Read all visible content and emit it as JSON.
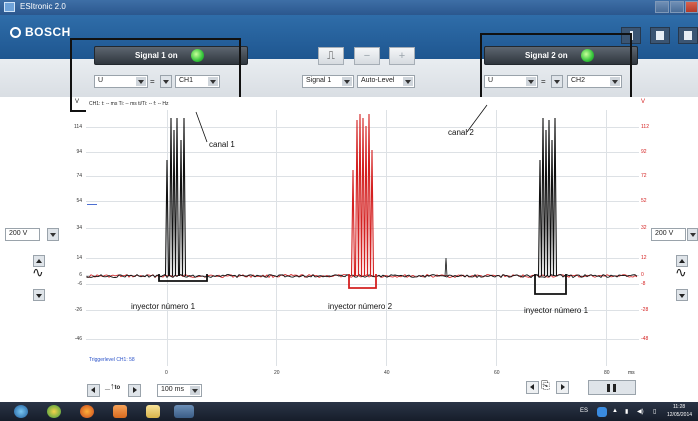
{
  "window": {
    "title": "ESItronic 2.0"
  },
  "header": {
    "brand": "BOSCH"
  },
  "signal1": {
    "button_label": "Signal 1 on",
    "quantity": "U",
    "op": "=",
    "channel": "CH1"
  },
  "signal2": {
    "button_label": "Signal 2 on",
    "quantity": "U",
    "op": "=",
    "channel": "CH2"
  },
  "center_controls": {
    "signal_select": "Signal 1",
    "level_select": "Auto-Level"
  },
  "plot": {
    "y_unit_left": "V",
    "y_unit_right": "V",
    "readout": "CH1: t: -- ms  Ti: -- ms  ti/Ti: -- f: -- Hz",
    "left_ticks": [
      "114",
      "94",
      "74",
      "54",
      "34",
      "14",
      "6",
      "-6",
      "-26",
      "-46"
    ],
    "right_ticks": [
      "112",
      "92",
      "72",
      "52",
      "32",
      "12",
      "0",
      "-8",
      "-28",
      "-48"
    ],
    "x_ticks": [
      "0",
      "20",
      "40",
      "60",
      "80"
    ],
    "x_unit": "ms",
    "trigger_label": "Triggerlevel CH1: 58",
    "colors": {
      "ch1": "#111111",
      "ch2": "#d42020"
    }
  },
  "annotations": {
    "canal1": "canal 1",
    "canal2": "canal 2",
    "inj1": "inyector número 1",
    "inj2": "inyector número 2",
    "inj3": "inyector número 1"
  },
  "left_panel": {
    "volts_per_div": "200 V"
  },
  "right_panel": {
    "volts_per_div": "200 V"
  },
  "bottom": {
    "timebase": "100 ms",
    "trigger_icon_label": "to"
  },
  "taskbar": {
    "lang": "ES",
    "time": "11:28",
    "date": "12/05/2014"
  }
}
